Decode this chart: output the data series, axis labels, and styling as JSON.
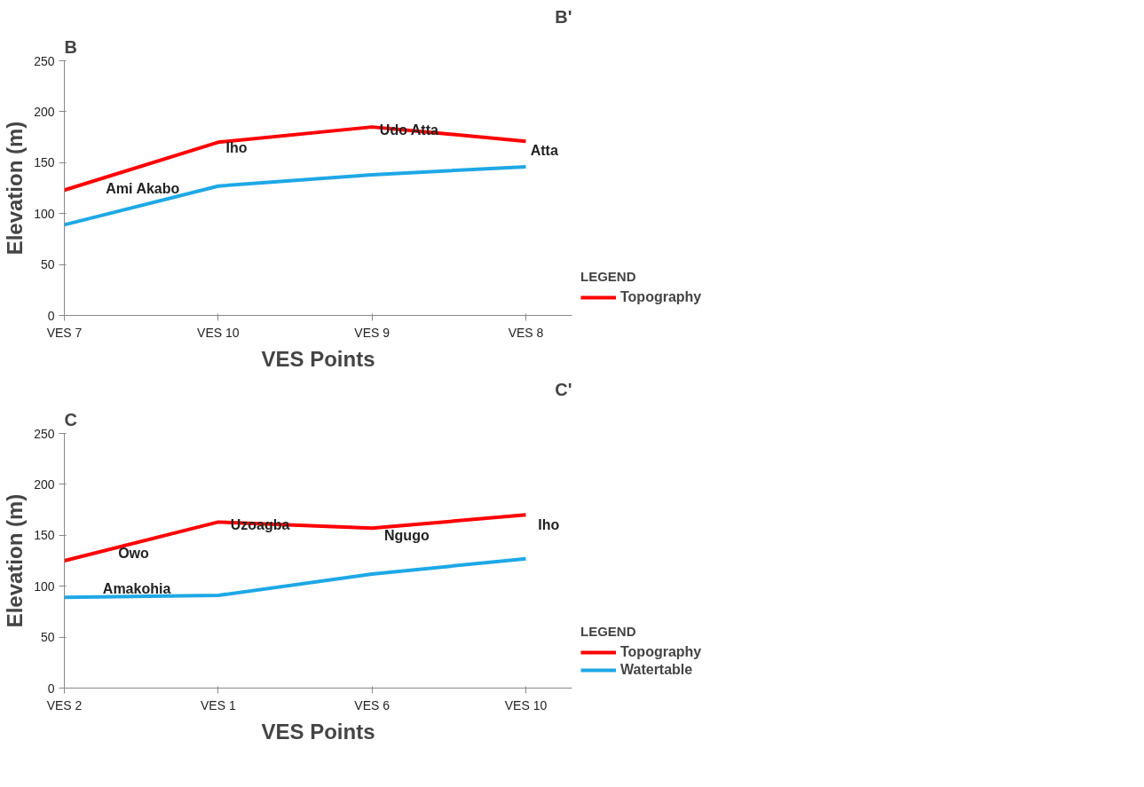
{
  "chart_data": [
    {
      "type": "line",
      "xlabel": "VES Points",
      "ylabel": "Elevation (m)",
      "categories": [
        "VES 7",
        "VES 10",
        "VES 9",
        "VES 8"
      ],
      "ylim": [
        0,
        250
      ],
      "yticks": [
        0,
        50,
        100,
        150,
        200,
        250
      ],
      "grid": false,
      "legend": "bottom right",
      "legend_title": "LEGEND",
      "series": [
        {
          "name": "Topography",
          "color": "#ff0000",
          "values": [
            123,
            170,
            185,
            171
          ]
        },
        {
          "color": "#1ea8e6",
          "values": [
            89,
            127,
            138,
            146
          ]
        }
      ],
      "annotations": [
        "B",
        "B'",
        "Ami Akabo",
        "Iho",
        "Udo Atta",
        "Atta"
      ]
    },
    {
      "type": "line",
      "xlabel": "VES Points",
      "ylabel": "Elevation (m)",
      "categories": [
        "VES 2",
        "VES 1",
        "VES 6",
        "VES 10"
      ],
      "ylim": [
        0,
        250
      ],
      "yticks": [
        0,
        50,
        100,
        150,
        200,
        250
      ],
      "grid": false,
      "legend": "bottom right",
      "legend_title": "LEGEND",
      "series": [
        {
          "name": "Topography",
          "color": "#ff0000",
          "values": [
            125,
            163,
            157,
            170
          ]
        },
        {
          "name": "Watertable",
          "color": "#1ea8e6",
          "values": [
            89,
            91,
            112,
            127
          ]
        }
      ],
      "annotations": [
        "C",
        "C'",
        "Owo",
        "Amakohia",
        "Uzoagba",
        "Ngugo",
        "Iho"
      ]
    }
  ]
}
